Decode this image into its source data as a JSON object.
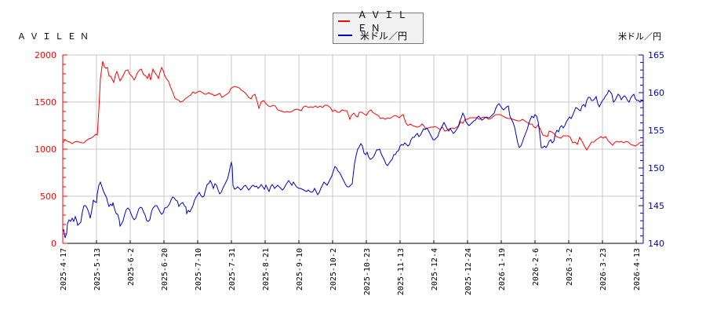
{
  "header": {
    "left_title": "ＡＶＩＬＥＮ",
    "right_title": "米ドル／円"
  },
  "legend": {
    "items": [
      {
        "label": "ＡＶＩＬＥＮ",
        "color": "#ff0000"
      },
      {
        "label": "米ドル／円",
        "color": "#0000cc"
      }
    ]
  },
  "colors": {
    "series_left": "#ff0000",
    "series_right": "#0000cc",
    "grid": "#c8c8c8",
    "legend_bg": "#f2f2f2"
  },
  "chart_data": {
    "type": "line",
    "title": "",
    "xlabel": "",
    "ylabel_left": "ＡＶＩＬＥＮ",
    "ylabel_right": "米ドル／円",
    "grid": true,
    "legend_position": "top-center",
    "ylim_left": [
      0,
      2000
    ],
    "ylim_right": [
      140,
      165
    ],
    "yticks_left": [
      0,
      500,
      1000,
      1500,
      2000
    ],
    "yticks_right": [
      140,
      145,
      150,
      155,
      160,
      165
    ],
    "x_tick_labels": [
      "2025-4-17",
      "2025-5-13",
      "2025-6-2",
      "2025-6-20",
      "2025-7-10",
      "2025-7-31",
      "2025-8-21",
      "2025-9-10",
      "2025-10-2",
      "2025-10-23",
      "2025-11-13",
      "2025-12-4",
      "2025-12-24",
      "2026-1-19",
      "2026-2-6",
      "2026-3-2",
      "2026-3-23",
      "2026-4-13"
    ],
    "categories": [
      "2025-4-17",
      "2025-5-13",
      "2025-6-2",
      "2025-6-20",
      "2025-7-10",
      "2025-7-31",
      "2025-8-21",
      "2025-9-10",
      "2025-10-2",
      "2025-10-23",
      "2025-11-13",
      "2025-12-4",
      "2025-12-24",
      "2026-1-19",
      "2026-2-6",
      "2026-3-2",
      "2026-3-23",
      "2026-4-13"
    ],
    "series": [
      {
        "name": "ＡＶＩＬＥＮ",
        "axis": "left",
        "color": "#ff0000",
        "values": [
          1100,
          1150,
          1800,
          1780,
          1700,
          1560,
          1620,
          1580,
          1400,
          1420,
          1300,
          1370,
          1270,
          1220,
          1320,
          1360,
          1300,
          1000
        ]
      },
      {
        "name": "米ドル／円",
        "axis": "right",
        "color": "#0000cc",
        "values": [
          142.5,
          148.0,
          144.5,
          146.2,
          147.2,
          147.0,
          147.6,
          147.8,
          147.0,
          152.5,
          154.0,
          155.5,
          156.5,
          157.5,
          152.5,
          156.0,
          158.5,
          158.8
        ]
      }
    ]
  },
  "plot_paths": {
    "left": "80,182 83,178 86,180 89,181 92,183 95,181 98,180 101,181 104,182 107,182 110,179 113,177 116,176 119,174 122,171 124,172 126,140 128,100 130,85 131,78 133,85 135,87 137,86 139,97 141,97 143,101 145,105 147,96 149,91 151,97 153,103 155,100 157,96 160,90 163,89 165,94 168,97 171,102 173,98 175,93 178,89 180,88 183,95 186,97 188,100 190,94 192,102 195,88 197,92 200,96 202,100 204,92 206,86 208,90 210,96 212,100 215,104 217,110 220,117 223,125 226,127 228,128 230,130 233,129 236,126 240,123 243,121 246,117 249,119 252,117 255,116 258,118 261,120 263,120 266,118 269,120 271,120 273,122 276,121 280,119 283,124 286,122 289,120 292,118 294,113 297,111 299,110 302,111 305,112 308,115 311,117 314,120 317,124 320,126 322,122 325,120 328,130 330,138 333,130 336,128 339,132 342,135 345,136 348,134 351,135 354,140 357,141 360,142 363,143 366,142 369,143 372,142 375,140 378,139 381,140 384,141 387,136 390,135 393,137 396,136 399,137 402,135 405,137 408,135 411,137 414,134 417,134 421,137 424,142 427,140 430,143 433,143 436,140 439,141 442,141 444,146 446,152 448,147 451,144 454,148 456,149 458,143 461,143 464,145 467,147 470,142 473,140 475,143 478,145 482,147 485,151 488,150 491,152 494,150 497,151 500,149 503,147 506,148 509,150 512,147 514,146 517,156 520,160 523,158 526,160 529,161 532,162 535,161 538,158 540,160 543,164 546,163 549,162 552,162 555,161 558,163 561,165 564,162 567,167 570,166 573,164 576,163 579,164 582,162 585,160 587,155 590,157 593,152 596,152 599,150 602,150 605,150 608,150 611,152 614,150 617,149 620,150 623,152 626,151 629,148 632,146 635,146 638,146 641,148 645,150 648,151 651,151 654,152 657,153 660,154 663,154 666,152 669,154 672,156 675,158 678,158 681,162 683,163 686,159 689,165 692,172 695,173 698,174 700,167 703,168 706,170 709,174 712,175 715,176 718,173 721,173 724,173 727,175 730,182 733,181 736,184 739,175 742,180 745,186 748,191 751,186 754,181 757,181 760,178 763,176 766,174 769,176 772,174 775,179 778,182 781,185 783,182 786,180 789,181 792,180 795,182 798,180 801,181 804,184 807,185 810,186 813,184 815,182 818,181 820,181",
    "right": "80,295 81,292 83,303 85,297 86,285 88,280 90,282 92,278 94,282 96,276 98,282 99,287 101,285 103,283 105,270 107,262 109,262 111,265 113,270 115,278 117,268 119,255 121,257 123,258 124,247 126,236 128,232 130,238 132,244 134,248 136,252 137,257 139,263 141,260 143,262 144,258 146,266 148,272 150,273 152,280 153,288 155,285 157,281 159,273 161,267 163,265 165,267 167,272 169,277 171,280 173,278 175,272 177,266 179,264 181,265 183,270 185,274 187,281 189,282 191,280 193,270 195,265 198,262 200,262 202,266 204,270 206,273 208,271 210,265 213,264 216,260 218,255 220,251 222,252 224,255 226,256 228,263 230,260 233,258 235,262 237,264 238,272 240,268 242,270 244,266 246,262 248,255 250,251 252,248 254,245 256,249 258,251 260,250 262,242 264,235 266,234 268,230 270,234 272,240 274,234 276,236 278,242 280,247 282,245 284,240 286,236 288,232 290,228 292,220 294,210 295,207 296,212 297,236 299,241 301,240 303,238 305,240 307,242 309,240 311,237 313,236 315,239 317,242 319,240 321,237 323,236 325,238 327,237 329,240 331,238 333,235 335,238 337,241 339,236 341,240 343,244 345,238 347,235 349,238 350,240 352,238 354,236 356,238 358,240 360,242 362,240 364,236 366,233 368,230 370,233 372,236 374,232 376,235 378,238 381,240 383,240 385,241 387,242 389,243 391,244 393,242 395,244 397,245 399,244 401,240 403,244 405,248 407,245 409,240 411,236 413,232 415,234 417,236 419,232 421,228 423,224 425,218 427,212 429,214 431,218 433,220 435,224 437,228 439,232 441,236 443,238 445,238 447,236 449,234 450,225 452,208 454,198 456,190 458,187 460,183 462,186 464,195 466,197 468,194 470,200 472,203 474,202 476,200 478,196 480,191 482,191 484,190 486,196 488,200 490,204 492,209 494,211 496,208 498,205 500,203 502,197 504,197 506,193 508,192 510,186 512,184 514,185 516,182 518,184 520,186 522,184 524,178 526,175 528,175 530,172 532,170 534,174 536,172 538,168 540,164 542,165 544,163 546,166 548,170 550,174 552,178 554,178 556,176 558,174 560,168 562,164 564,160 566,156 568,160 570,164 572,167 574,164 576,167 578,170 580,168 582,165 584,162 586,155 588,150 590,144 592,148 594,155 596,158 598,160 600,158 602,156 604,154 606,153 608,150 610,148 612,150 614,153 616,152 618,150 620,149 622,150 624,150 626,148 628,146 630,144 632,138 634,134 636,132 638,135 640,138 642,140 644,138 646,136 648,135 650,148 652,152 654,156 656,162 658,172 660,182 662,188 664,186 666,181 668,175 670,170 672,165 674,158 676,152 678,148 680,150 682,146 684,148 686,155 688,170 690,188 692,188 694,186 696,188 698,185 700,180 702,178 704,182 706,180 708,170 710,166 712,168 714,162 716,160 718,163 720,160 722,155 724,152 726,149 728,151 730,147 732,142 734,137 736,138 738,140 740,141 742,135 744,133 746,136 748,128 750,124 752,124 754,128 756,128 758,126 760,123 762,132 764,136 766,132 768,128 770,126 772,122 774,120 776,115 778,117 780,120 782,130 784,128 786,124 788,120 790,122 792,127 794,124 796,122 798,124 800,128 802,130 804,125 806,122 808,120 810,126 812,128 814,128 816,130 818,128 820,129"
  }
}
